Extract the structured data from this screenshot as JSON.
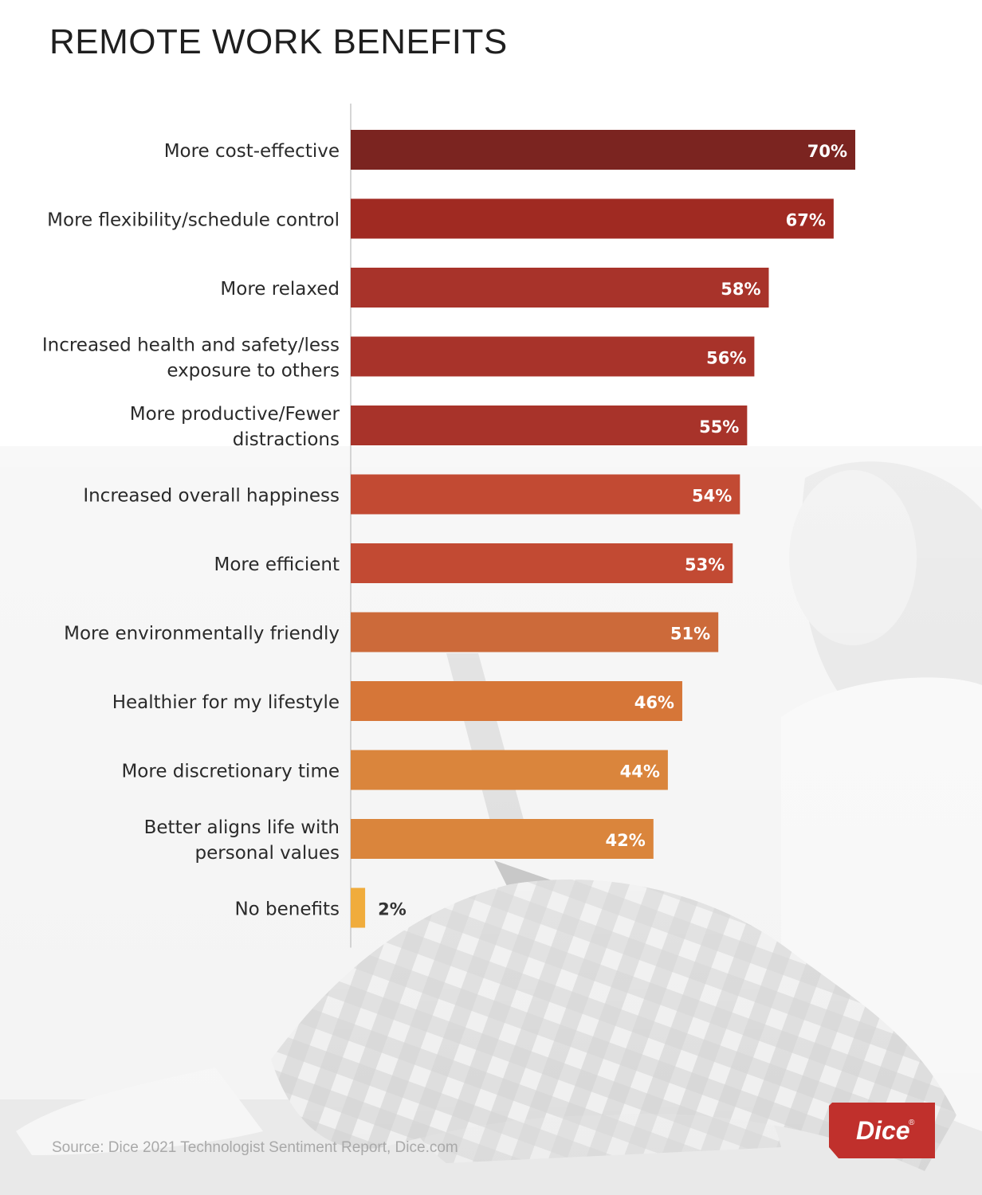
{
  "title": "REMOTE WORK BENEFITS",
  "source": "Source: Dice 2021 Technologist Sentiment Report, Dice.com",
  "logo_text": "Dice",
  "logo_mark": "®",
  "colors": {
    "logo": "#c0302c",
    "axis": "#c8c8c8",
    "label_text": "#2a2a2a",
    "value_text_inside": "#ffffff",
    "value_text_outside": "#333333"
  },
  "chart_data": {
    "type": "bar",
    "orientation": "horizontal",
    "title": "REMOTE WORK BENEFITS",
    "xlim": [
      0,
      70
    ],
    "grid": false,
    "categories": [
      "More cost-effective",
      "More flexibility/schedule control",
      "More relaxed",
      "Increased health and safety/less exposure to others",
      "More productive/Fewer distractions",
      "Increased overall happiness",
      "More efficient",
      "More environmentally friendly",
      "Healthier for my lifestyle",
      "More discretionary time",
      "Better aligns life with personal values",
      "No benefits"
    ],
    "category_lines": [
      [
        "More cost-effective"
      ],
      [
        "More flexibility/schedule control"
      ],
      [
        "More relaxed"
      ],
      [
        "Increased health and safety/less",
        "exposure to others"
      ],
      [
        "More productive/Fewer",
        "distractions"
      ],
      [
        "Increased overall happiness"
      ],
      [
        "More efficient"
      ],
      [
        "More environmentally friendly"
      ],
      [
        "Healthier for my lifestyle"
      ],
      [
        "More discretionary time"
      ],
      [
        "Better aligns life with",
        "personal values"
      ],
      [
        "No benefits"
      ]
    ],
    "values": [
      70,
      67,
      58,
      56,
      55,
      54,
      53,
      51,
      46,
      44,
      42,
      2
    ],
    "value_labels": [
      "70%",
      "67%",
      "58%",
      "56%",
      "55%",
      "54%",
      "53%",
      "51%",
      "46%",
      "44%",
      "42%",
      "2%"
    ],
    "bar_colors": [
      "#7b2420",
      "#a02a22",
      "#a8332a",
      "#a8332a",
      "#a8332a",
      "#c24a33",
      "#c24a33",
      "#cc6a3a",
      "#d67638",
      "#da853c",
      "#da853c",
      "#f0ac3c"
    ]
  }
}
